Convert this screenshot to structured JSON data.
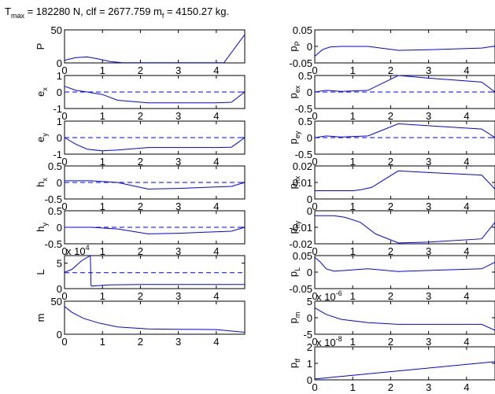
{
  "title": {
    "p1": "T",
    "p1_sub": "max",
    "p2": " = 182280 N, clf = 2677.759 m",
    "p2_sub": "f",
    "p3": " = 4150.27 kg."
  },
  "colors": {
    "line": "#0000ff",
    "axes": "#000000",
    "background": "#ffffff"
  },
  "chart_data": [
    {
      "type": "line",
      "xlabel": "",
      "ylabel": "P",
      "ylabel_sub": "",
      "xlim": [
        0,
        4.75
      ],
      "ylim": [
        0,
        50
      ],
      "yticks": [
        "0",
        "50"
      ],
      "ytick_values": [
        0,
        50
      ],
      "xticks": [
        "0",
        "1",
        "2",
        "3",
        "4"
      ],
      "xtick_values": [
        0,
        1,
        2,
        3,
        4
      ],
      "dashed_zero_line": false,
      "series": [
        {
          "x": [
            0,
            0.3,
            0.6,
            0.9,
            1.2,
            1.5,
            2.0,
            4.2,
            4.75
          ],
          "y": [
            4,
            8,
            9,
            6,
            2,
            0.5,
            0.2,
            0.2,
            43
          ]
        }
      ]
    },
    {
      "type": "line",
      "xlabel": "",
      "ylabel": "e",
      "ylabel_sub": "x",
      "xlim": [
        0,
        4.75
      ],
      "ylim": [
        -1,
        1
      ],
      "yticks": [
        "-1",
        "0",
        "1"
      ],
      "ytick_values": [
        -1,
        0,
        1
      ],
      "xticks": [
        "0",
        "1",
        "2",
        "3",
        "4"
      ],
      "xtick_values": [
        0,
        1,
        2,
        3,
        4
      ],
      "dashed_zero_line": true,
      "series": [
        {
          "x": [
            0,
            0.3,
            0.6,
            1.0,
            1.4,
            2.2,
            3.0,
            4.0,
            4.4,
            4.75
          ],
          "y": [
            0.35,
            0.1,
            0,
            -0.15,
            -0.5,
            -0.65,
            -0.65,
            -0.65,
            -0.62,
            0
          ]
        }
      ]
    },
    {
      "type": "line",
      "xlabel": "",
      "ylabel": "e",
      "ylabel_sub": "y",
      "xlim": [
        0,
        4.75
      ],
      "ylim": [
        -1,
        1
      ],
      "yticks": [
        "-1",
        "0",
        "1"
      ],
      "ytick_values": [
        -1,
        0,
        1
      ],
      "xticks": [
        "0",
        "1",
        "2",
        "3",
        "4"
      ],
      "xtick_values": [
        0,
        1,
        2,
        3,
        4
      ],
      "dashed_zero_line": true,
      "series": [
        {
          "x": [
            0,
            0.3,
            0.6,
            1.0,
            1.4,
            2.2,
            3.0,
            4.0,
            4.4,
            4.75
          ],
          "y": [
            0,
            -0.4,
            -0.7,
            -0.8,
            -0.75,
            -0.6,
            -0.6,
            -0.6,
            -0.58,
            0
          ]
        }
      ]
    },
    {
      "type": "line",
      "xlabel": "",
      "ylabel": "h",
      "ylabel_sub": "x",
      "xlim": [
        0,
        4.75
      ],
      "ylim": [
        -0.5,
        0.5
      ],
      "yticks": [
        "-0.5",
        "0",
        "0.5"
      ],
      "ytick_values": [
        -0.5,
        0,
        0.5
      ],
      "xticks": [
        "0",
        "1",
        "2",
        "3",
        "4"
      ],
      "xtick_values": [
        0,
        1,
        2,
        3,
        4
      ],
      "dashed_zero_line": true,
      "series": [
        {
          "x": [
            0,
            0.7,
            1.4,
            2.2,
            3.0,
            4.4,
            4.75
          ],
          "y": [
            0.05,
            0.05,
            0,
            -0.2,
            -0.18,
            -0.12,
            0
          ]
        }
      ]
    },
    {
      "type": "line",
      "xlabel": "",
      "ylabel": "h",
      "ylabel_sub": "y",
      "xlim": [
        0,
        4.75
      ],
      "ylim": [
        -0.5,
        0.5
      ],
      "yticks": [
        "-0.5",
        "0",
        "0.5"
      ],
      "ytick_values": [
        -0.5,
        0,
        0.5
      ],
      "xticks": [
        "0",
        "1",
        "2",
        "3",
        "4"
      ],
      "xtick_values": [
        0,
        1,
        2,
        3,
        4
      ],
      "dashed_zero_line": true,
      "series": [
        {
          "x": [
            0,
            0.7,
            1.4,
            2.2,
            3.0,
            4.4,
            4.75
          ],
          "y": [
            0,
            0,
            -0.05,
            -0.2,
            -0.18,
            -0.12,
            0
          ]
        }
      ]
    },
    {
      "type": "line",
      "xlabel": "",
      "ylabel": "L",
      "ylabel_sub": "",
      "xlim": [
        0,
        4.75
      ],
      "ylim": [
        0,
        6.5
      ],
      "yticks": [
        "0",
        "5"
      ],
      "ytick_values": [
        0,
        5
      ],
      "xticks": [
        "0",
        "1",
        "2",
        "3",
        "4"
      ],
      "xtick_values": [
        0,
        1,
        2,
        3,
        4
      ],
      "multiplier": "x 10",
      "multiplier_exp": "4",
      "dashed_reference_y": 3.14,
      "series": [
        {
          "x": [
            0,
            0.2,
            0.45,
            0.68,
            0.7,
            0.72,
            0.9,
            1.2,
            2.0,
            4.0,
            4.75
          ],
          "y": [
            3.2,
            3.8,
            5.5,
            6.5,
            0.6,
            0.5,
            0.6,
            0.75,
            0.8,
            0.8,
            0.82
          ]
        }
      ]
    },
    {
      "type": "line",
      "xlabel": "",
      "ylabel": "m",
      "ylabel_sub": "",
      "xlim": [
        0,
        4.75
      ],
      "ylim": [
        0,
        50
      ],
      "yticks": [
        "0",
        "50"
      ],
      "ytick_values": [
        0,
        50
      ],
      "xticks": [
        "0",
        "1",
        "2",
        "3",
        "4"
      ],
      "xtick_values": [
        0,
        1,
        2,
        3,
        4
      ],
      "dashed_zero_line": false,
      "series": [
        {
          "x": [
            0,
            0.2,
            0.5,
            0.9,
            1.4,
            2.2,
            3.0,
            4.0,
            4.75
          ],
          "y": [
            42,
            33,
            24,
            17,
            11,
            8,
            7.5,
            7,
            3
          ]
        }
      ]
    },
    {
      "type": "line",
      "xlabel": "",
      "ylabel": "p",
      "ylabel_sub": "P",
      "xlim": [
        0,
        4.75
      ],
      "ylim": [
        -0.05,
        0.05
      ],
      "yticks": [
        "-0.05",
        "0",
        "0.05"
      ],
      "ytick_values": [
        -0.05,
        0,
        0.05
      ],
      "xticks": [
        "0",
        "1",
        "2",
        "3",
        "4"
      ],
      "xtick_values": [
        0,
        1,
        2,
        3,
        4
      ],
      "dashed_zero_line": false,
      "series": [
        {
          "x": [
            0,
            0.2,
            0.4,
            0.7,
            1.4,
            2.2,
            3.0,
            4.4,
            4.75
          ],
          "y": [
            -0.03,
            -0.01,
            -0.002,
            0,
            0,
            -0.012,
            -0.01,
            -0.005,
            0.001
          ]
        }
      ]
    },
    {
      "type": "line",
      "xlabel": "",
      "ylabel": "p",
      "ylabel_sub": "ex",
      "xlim": [
        0,
        4.75
      ],
      "ylim": [
        -0.5,
        0.5
      ],
      "yticks": [
        "-0.5",
        "0",
        "0.5"
      ],
      "ytick_values": [
        -0.5,
        0,
        0.5
      ],
      "xticks": [
        "0",
        "1",
        "2",
        "3",
        "4"
      ],
      "xtick_values": [
        0,
        1,
        2,
        3,
        4
      ],
      "dashed_zero_line": true,
      "series": [
        {
          "x": [
            0,
            0.3,
            0.7,
            1.4,
            2.2,
            3.0,
            4.4,
            4.75
          ],
          "y": [
            0,
            0.05,
            0.02,
            0.05,
            0.5,
            0.42,
            0.3,
            0
          ]
        }
      ]
    },
    {
      "type": "line",
      "xlabel": "",
      "ylabel": "p",
      "ylabel_sub": "ey",
      "xlim": [
        0,
        4.75
      ],
      "ylim": [
        -0.5,
        0.5
      ],
      "yticks": [
        "-0.5",
        "0",
        "0.5"
      ],
      "ytick_values": [
        -0.5,
        0,
        0.5
      ],
      "xticks": [
        "0",
        "1",
        "2",
        "3",
        "4"
      ],
      "xtick_values": [
        0,
        1,
        2,
        3,
        4
      ],
      "dashed_zero_line": true,
      "series": [
        {
          "x": [
            0,
            0.3,
            0.7,
            1.4,
            2.2,
            3.0,
            4.4,
            4.75
          ],
          "y": [
            0,
            0.05,
            0.02,
            0.05,
            0.42,
            0.36,
            0.26,
            0
          ]
        }
      ]
    },
    {
      "type": "line",
      "xlabel": "",
      "ylabel": "p",
      "ylabel_sub": "hx",
      "xlim": [
        0,
        4.75
      ],
      "ylim": [
        0,
        0.02
      ],
      "yticks": [
        "0",
        "0.01",
        "0.02"
      ],
      "ytick_values": [
        0,
        0.01,
        0.02
      ],
      "xticks": [
        "0",
        "1",
        "2",
        "3",
        "4"
      ],
      "xtick_values": [
        0,
        1,
        2,
        3,
        4
      ],
      "dashed_zero_line": false,
      "series": [
        {
          "x": [
            0,
            1.0,
            1.2,
            1.5,
            2.2,
            3.0,
            4.4,
            4.75
          ],
          "y": [
            0.005,
            0.005,
            0.0055,
            0.007,
            0.017,
            0.016,
            0.0145,
            0.006
          ]
        }
      ]
    },
    {
      "type": "line",
      "xlabel": "",
      "ylabel": "p",
      "ylabel_sub": "hy",
      "xlim": [
        0,
        4.75
      ],
      "ylim": [
        -0.02,
        0
      ],
      "yticks": [
        "-0.02",
        "-0.01",
        "0"
      ],
      "ytick_values": [
        -0.02,
        -0.01,
        0
      ],
      "xticks": [
        "0",
        "1",
        "2",
        "3",
        "4"
      ],
      "xtick_values": [
        0,
        1,
        2,
        3,
        4
      ],
      "dashed_zero_line": false,
      "series": [
        {
          "x": [
            0,
            0.5,
            0.8,
            1.2,
            1.6,
            2.2,
            3.0,
            4.4,
            4.75
          ],
          "y": [
            -0.003,
            -0.003,
            -0.004,
            -0.007,
            -0.014,
            -0.0195,
            -0.019,
            -0.017,
            -0.007
          ]
        }
      ]
    },
    {
      "type": "line",
      "xlabel": "",
      "ylabel": "p",
      "ylabel_sub": "L",
      "xlim": [
        0,
        4.75
      ],
      "ylim": [
        -0.05,
        0.05
      ],
      "yticks": [
        "-0.05",
        "0",
        "0.05"
      ],
      "ytick_values": [
        -0.05,
        0,
        0.05
      ],
      "xticks": [
        "0",
        "1",
        "2",
        "3",
        "4"
      ],
      "xtick_values": [
        0,
        1,
        2,
        3,
        4
      ],
      "dashed_zero_line": false,
      "series": [
        {
          "x": [
            0,
            0.15,
            0.3,
            0.5,
            0.8,
            1.4,
            2.2,
            3.0,
            4.4,
            4.75
          ],
          "y": [
            0.045,
            0.03,
            0.01,
            0.003,
            0.005,
            0.01,
            0.002,
            0.005,
            0.01,
            0.03
          ]
        }
      ]
    },
    {
      "type": "line",
      "xlabel": "",
      "ylabel": "p",
      "ylabel_sub": "m",
      "xlim": [
        0,
        4.75
      ],
      "ylim": [
        -5,
        5
      ],
      "yticks": [
        "-5",
        "0",
        "5"
      ],
      "ytick_values": [
        -5,
        0,
        5
      ],
      "xticks": [
        "0",
        "1",
        "2",
        "3",
        "4"
      ],
      "xtick_values": [
        0,
        1,
        2,
        3,
        4
      ],
      "multiplier": "x 10",
      "multiplier_exp": "-6",
      "dashed_zero_line": false,
      "series": [
        {
          "x": [
            0,
            0.3,
            0.7,
            1.4,
            2.2,
            3.0,
            4.4,
            4.75
          ],
          "y": [
            3,
            1,
            -0.5,
            -1.5,
            -2,
            -2,
            -2,
            -3.8
          ]
        }
      ]
    },
    {
      "type": "line",
      "xlabel": "",
      "ylabel": "p",
      "ylabel_sub": "tf",
      "xlim": [
        0,
        4.75
      ],
      "ylim": [
        0,
        2
      ],
      "yticks": [
        "0",
        "1",
        "2"
      ],
      "ytick_values": [
        0,
        1,
        2
      ],
      "xticks": [
        "0",
        "1",
        "2",
        "3",
        "4"
      ],
      "xtick_values": [
        0,
        1,
        2,
        3,
        4
      ],
      "multiplier": "x 10",
      "multiplier_exp": "-8",
      "dashed_zero_line": false,
      "series": [
        {
          "x": [
            0,
            4.75
          ],
          "y": [
            0.05,
            1.1
          ]
        }
      ]
    }
  ]
}
